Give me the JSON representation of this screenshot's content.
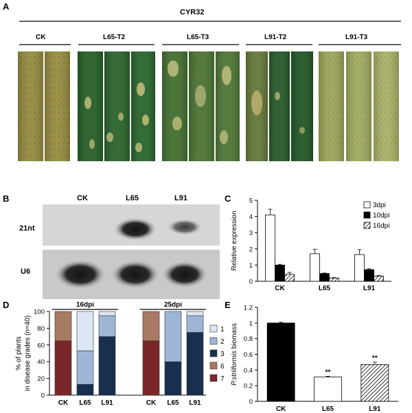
{
  "panel_a": {
    "letter": "A",
    "strain": "CYR32",
    "groups": [
      "CK",
      "L65-T2",
      "L65-T3",
      "L91-T2",
      "L91-T3"
    ]
  },
  "panel_b": {
    "letter": "B",
    "columns": [
      "CK",
      "L65",
      "L91"
    ],
    "rows": [
      "21nt",
      "U6"
    ],
    "signal": [
      [
        0,
        0.9,
        0.6
      ],
      [
        1.0,
        1.0,
        0.95
      ]
    ]
  },
  "chart_data": [
    {
      "panel": "C",
      "type": "bar",
      "categories": [
        "CK",
        "L65",
        "L91"
      ],
      "ylabel": "Relative expression",
      "ylim": [
        0,
        5
      ],
      "yticks": [
        0,
        1,
        2,
        3,
        4,
        5
      ],
      "series": [
        {
          "name": "3dpi",
          "values": [
            4.1,
            1.7,
            1.65
          ],
          "errors": [
            0.35,
            0.28,
            0.3
          ],
          "fill": "#ffffff"
        },
        {
          "name": "10dpi",
          "values": [
            1.0,
            0.48,
            0.72
          ],
          "errors": [
            0.05,
            0.03,
            0.05
          ],
          "fill": "#000000"
        },
        {
          "name": "16dpi",
          "values": [
            0.43,
            0.2,
            0.32
          ],
          "errors": [
            0.12,
            0.03,
            0.03
          ],
          "fill": "hatch"
        }
      ],
      "legend": "top-right"
    },
    {
      "panel": "D",
      "type": "bar",
      "stacked": true,
      "groups": [
        "16dpi",
        "25dpi"
      ],
      "categories": [
        "CK",
        "L65",
        "L91"
      ],
      "ylabel": "% of plants in disease grades (n=40)",
      "ylim": [
        0,
        100
      ],
      "yticks": [
        0,
        20,
        40,
        60,
        80,
        100
      ],
      "series": [
        {
          "name": "1",
          "color": "#dce7f3",
          "values_16dpi": [
            0,
            47,
            5
          ],
          "values_25dpi": [
            0,
            0,
            5
          ]
        },
        {
          "name": "2",
          "color": "#9db6d6",
          "values_16dpi": [
            0,
            40,
            25
          ],
          "values_25dpi": [
            0,
            60,
            20
          ]
        },
        {
          "name": "3",
          "color": "#17304f",
          "values_16dpi": [
            0,
            13,
            70
          ],
          "values_25dpi": [
            0,
            40,
            75
          ]
        },
        {
          "name": "6",
          "color": "#a87a64",
          "values_16dpi": [
            35,
            0,
            0
          ],
          "values_25dpi": [
            35,
            0,
            0
          ]
        },
        {
          "name": "7",
          "color": "#7a2628",
          "values_16dpi": [
            65,
            0,
            0
          ],
          "values_25dpi": [
            65,
            0,
            0
          ]
        }
      ],
      "legend": "right"
    },
    {
      "panel": "E",
      "type": "bar",
      "categories": [
        "CK",
        "L65",
        "L91"
      ],
      "ylabel_italic": "P.striiformis",
      "ylabel_rest": " biomass",
      "ylim": [
        0,
        1.2
      ],
      "yticks": [
        "0",
        "0.2",
        "0.4",
        "0.6",
        "0.8",
        "1",
        "1.2"
      ],
      "values": [
        1.0,
        0.31,
        0.47
      ],
      "errors": [
        0.01,
        0.01,
        0.03
      ],
      "fills": [
        "#000000",
        "#ffffff",
        "hatch"
      ],
      "annotations": [
        "",
        "**",
        "**"
      ]
    }
  ]
}
